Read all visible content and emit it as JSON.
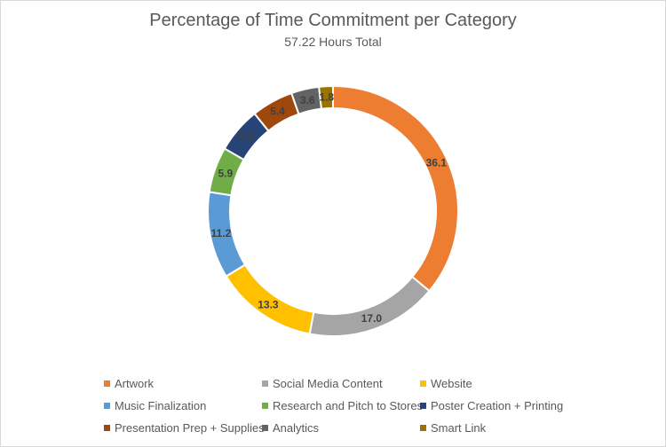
{
  "chart_data": {
    "type": "pie",
    "title": "Percentage of Time Commitment per Category",
    "subtitle": "57.22 Hours Total",
    "donut": true,
    "legend_position": "bottom",
    "categories": [
      "Artwork",
      "Social Media Content",
      "Website",
      "Music Finalization",
      "Research and Pitch to Stores",
      "Poster Creation + Printing",
      "Presentation Prep + Supplies",
      "Analytics",
      "Smart Link"
    ],
    "values": [
      36.1,
      17.0,
      13.3,
      11.2,
      5.9,
      5.9,
      5.4,
      3.6,
      1.8
    ],
    "labels": [
      "36.1",
      "17.0",
      "13.3",
      "11.2",
      "5.9",
      "5.9",
      "5.4",
      "3.6",
      "1.8"
    ],
    "colors": [
      "#ED7D31",
      "#A5A5A5",
      "#FFC000",
      "#5B9BD5",
      "#70AD47",
      "#264478",
      "#9E480E",
      "#636363",
      "#997300"
    ]
  }
}
